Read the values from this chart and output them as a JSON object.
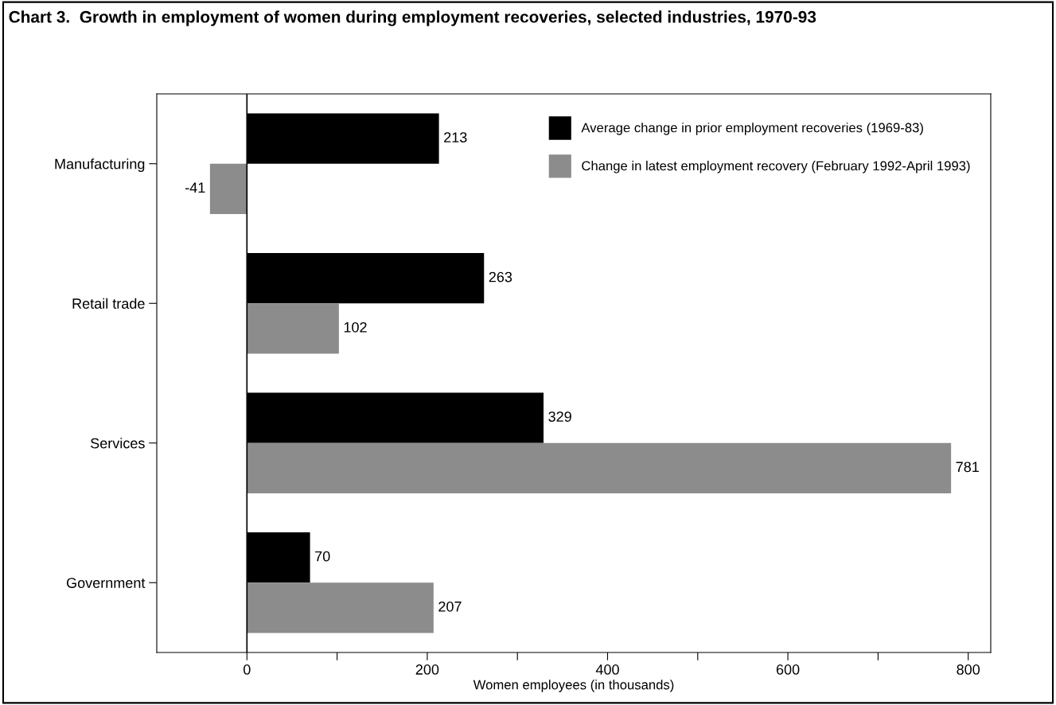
{
  "chart_data": {
    "type": "bar",
    "orientation": "horizontal",
    "title": "Chart 3.  Growth in employment of women during employment recoveries, selected industries, 1970-93",
    "categories": [
      "Manufacturing",
      "Retail trade",
      "Services",
      "Government"
    ],
    "series": [
      {
        "name": "Average change in prior employment recoveries (1969-83)",
        "color": "#000000",
        "values": [
          213,
          263,
          329,
          70
        ]
      },
      {
        "name": "Change in latest employment recovery (February 1992-April 1993)",
        "color": "#8c8c8c",
        "values": [
          -41,
          102,
          781,
          207
        ]
      }
    ],
    "xlabel": "Women employees (in thousands)",
    "xlim": [
      -100,
      825
    ],
    "xticks": [
      0,
      {
        "value": 100,
        "label": null
      },
      200,
      {
        "value": 300,
        "label": null
      },
      400,
      {
        "value": 500,
        "label": null
      },
      600,
      {
        "value": 700,
        "label": null
      },
      800
    ],
    "ref_lines": [
      {
        "axis": "x",
        "value": 0,
        "color": "#000000"
      }
    ],
    "data_labels": true,
    "legend": "top right",
    "grid": false
  }
}
